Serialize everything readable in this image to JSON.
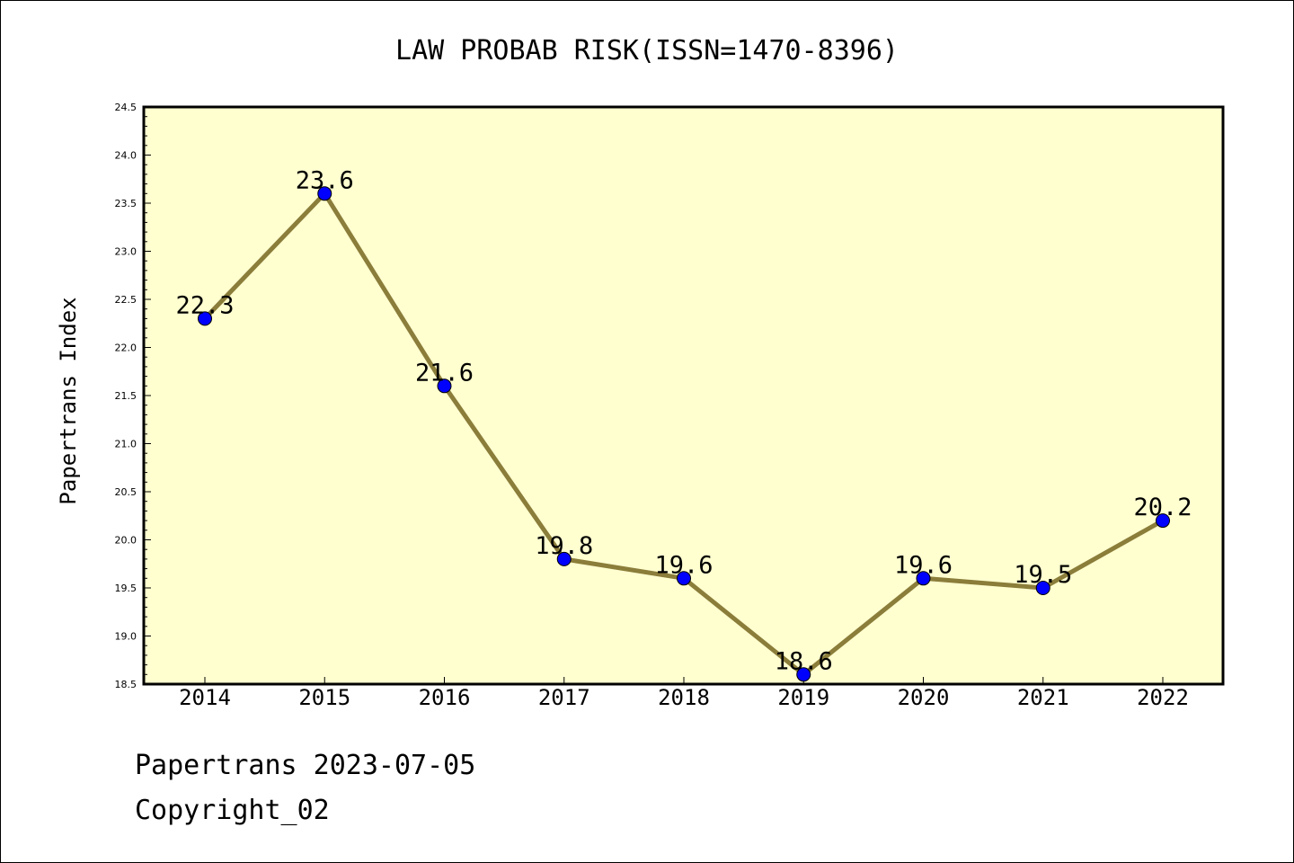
{
  "chart_data": {
    "type": "line",
    "title": "LAW PROBAB RISK(ISSN=1470-8396)",
    "xlabel": "",
    "ylabel": "Papertrans Index",
    "categories": [
      "2014",
      "2015",
      "2016",
      "2017",
      "2018",
      "2019",
      "2020",
      "2021",
      "2022"
    ],
    "series": [
      {
        "values": [
          22.3,
          23.6,
          21.6,
          19.8,
          19.6,
          18.6,
          19.6,
          19.5,
          20.2
        ]
      }
    ],
    "data_labels": [
      "22.3",
      "23.6",
      "21.6",
      "19.8",
      "19.6",
      "18.6",
      "19.6",
      "19.5",
      "20.2"
    ],
    "ylim": [
      18.5,
      24.5
    ],
    "yticks": [
      "18.5",
      "19.0",
      "19.5",
      "20.0",
      "20.5",
      "21.0",
      "21.5",
      "22.0",
      "22.5",
      "23.0",
      "23.5",
      "24.0",
      "24.5"
    ],
    "grid": false,
    "colors": {
      "plot_background": "#ffffd0",
      "line": "#8b7d3a",
      "marker": "#0000ff"
    }
  },
  "footer": {
    "line1": "Papertrans 2023-07-05",
    "line2": "Copyright_02"
  }
}
